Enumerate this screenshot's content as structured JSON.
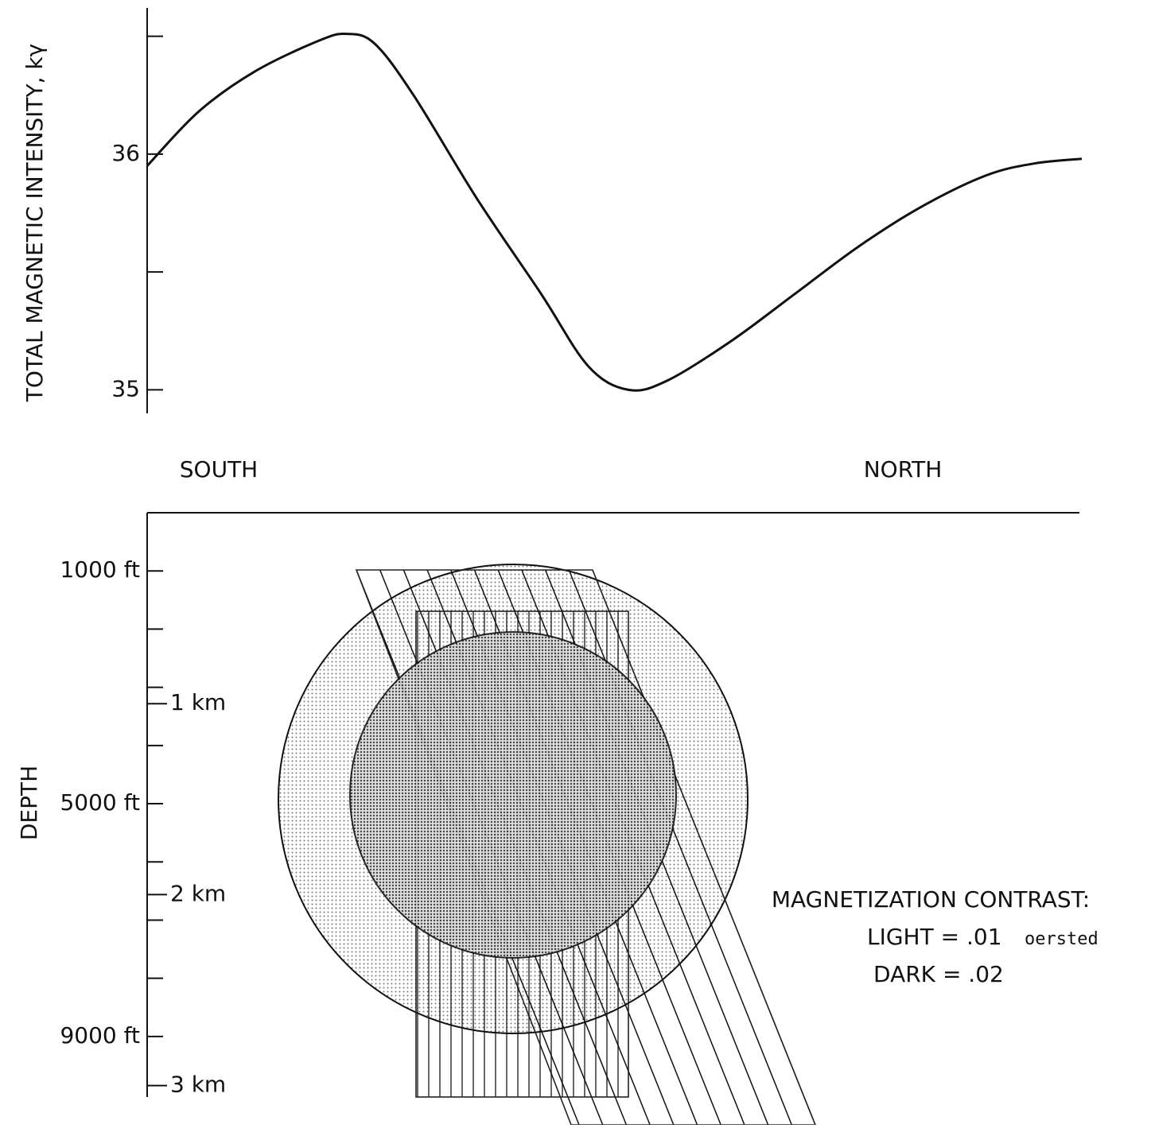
{
  "chart_data": [
    {
      "type": "line",
      "ylabel": "TOTAL MAGNETIC INTENSITY, kγ",
      "x_start_label": "SOUTH",
      "x_end_label": "NORTH",
      "xlim": [
        0,
        100
      ],
      "ylim": [
        34.9,
        36.62
      ],
      "yticks": [
        35,
        36
      ],
      "yminorticks": [
        35.5,
        36.5
      ],
      "series": [
        {
          "color": "#111111",
          "x": [
            0,
            5.5,
            11.5,
            18.3,
            21.3,
            24.3,
            28.5,
            35.3,
            42.1,
            47.2,
            51.5,
            55.7,
            62.6,
            69.4,
            76.2,
            83.0,
            89.8,
            94.9,
            100
          ],
          "values": [
            35.95,
            36.18,
            36.35,
            36.48,
            36.51,
            36.47,
            36.25,
            35.81,
            35.41,
            35.1,
            35.0,
            35.04,
            35.21,
            35.41,
            35.61,
            35.78,
            35.91,
            35.96,
            35.98
          ]
        }
      ]
    },
    {
      "type": "section",
      "ylabel": "DEPTH",
      "ylim": [
        0,
        10040
      ],
      "yticks": [
        {
          "value": 1000,
          "label": "1000 ft"
        },
        {
          "value": 5000,
          "label": "5000 ft"
        },
        {
          "value": 9000,
          "label": "9000 ft"
        }
      ],
      "yminorticks": [
        2000,
        3000,
        4000,
        6000,
        7000,
        8000
      ],
      "y2lim": [
        0,
        3.06
      ],
      "y2ticks": [
        {
          "value": 1,
          "label": "1 km"
        },
        {
          "value": 2,
          "label": "2 km"
        },
        {
          "value": 3,
          "label": "3 km"
        }
      ],
      "legend": {
        "title": "MAGNETIZATION CONTRAST:",
        "light": "LIGHT = .01",
        "unit": "oersted",
        "dark": "DARK = .02"
      }
    }
  ]
}
